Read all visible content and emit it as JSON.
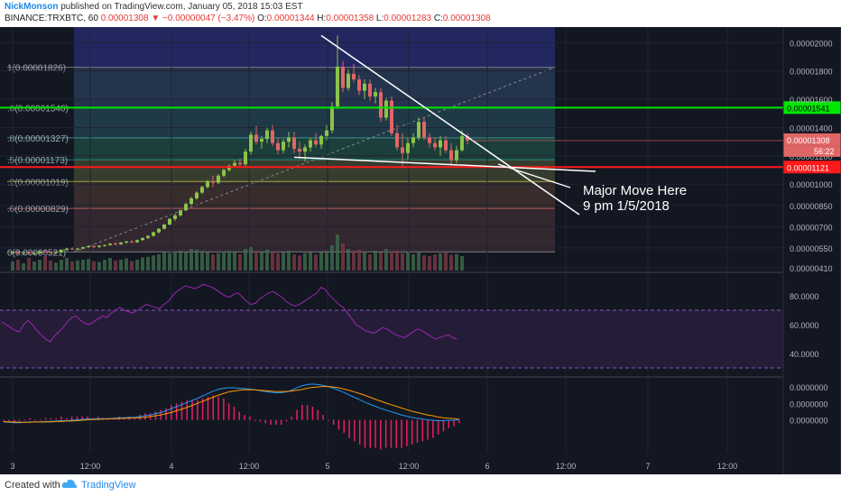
{
  "header": {
    "author": "NickMonson",
    "published": "published on TradingView.com, January 05, 2018 15:03 EST",
    "symbol": "BINANCE:TRXBTC, 60",
    "price": "0.00001308",
    "change": "−0.00000047 (−3.47%)",
    "ohlc": {
      "o_label": "O:",
      "o": "0.00001344",
      "h_label": "H:",
      "h": "0.00001358",
      "l_label": "L:",
      "l": "0.00001283",
      "c_label": "C:",
      "c": "0.00001308"
    }
  },
  "footer": {
    "created_with": "Created with",
    "brand": "TradingView"
  },
  "colors": {
    "bg": "#131722",
    "up": "#8bc34a",
    "down": "#e06666",
    "green_line": "#00e600",
    "red_line": "#ff1a1a",
    "rsi": "#9c27b0",
    "macd": "#2196f3",
    "signal": "#ff9800"
  },
  "chart_data": {
    "type": "candlestick",
    "price_axis_labels": [
      "0.00002000",
      "0.00001800",
      "0.00001600",
      "0.00001400",
      "0.00001200",
      "0.00001000",
      "0.00000850",
      "0.00000700",
      "0.00000550",
      "0.00000410"
    ],
    "price_range": [
      3.9e-06,
      2.11e-05
    ],
    "current_price": "0.00001308",
    "countdown": "56:22",
    "time_labels": [
      "3",
      "12:00",
      "4",
      "12:00",
      "5",
      "12:00",
      "6",
      "12:00",
      "7",
      "12:00"
    ],
    "fib_levels": [
      {
        "label": "1(0.00001826)",
        "value": 1.826e-05
      },
      {
        "label": ".6(0.00001540)",
        "value": 1.54e-05
      },
      {
        "label": ".8(0.00001327)",
        "value": 1.327e-05
      },
      {
        "label": ".5(0.00001173)",
        "value": 1.173e-05
      },
      {
        "label": ".2(0.00001019)",
        "value": 1.019e-05
      },
      {
        "label": ".6(0.00000829)",
        "value": 8.29e-06
      },
      {
        "label": "0(0.00000521)",
        "value": 5.21e-06
      }
    ],
    "horizontal_lines": [
      {
        "label": "0.00001541",
        "value": 1.541e-05,
        "color": "#00e600"
      },
      {
        "label": "0.00001121",
        "value": 1.121e-05,
        "color": "#ff1a1a"
      }
    ],
    "annotation": {
      "line1": "Major Move Here",
      "line2": "9 pm 1/5/2018"
    },
    "rsi_labels": [
      "80.0000",
      "60.0000",
      "40.0000"
    ],
    "rsi_range": [
      25,
      95
    ],
    "rsi_bands": [
      70,
      30
    ],
    "rsi": [
      62,
      60,
      58,
      56,
      55,
      60,
      63,
      60,
      56,
      53,
      50,
      48,
      52,
      55,
      58,
      62,
      65,
      66,
      63,
      61,
      60,
      62,
      64,
      66,
      65,
      68,
      70,
      72,
      70,
      69,
      68,
      70,
      72,
      74,
      73,
      72,
      71,
      74,
      76,
      80,
      83,
      85,
      87,
      86,
      85,
      86,
      88,
      87,
      86,
      84,
      82,
      80,
      79,
      81,
      82,
      79,
      76,
      74,
      75,
      78,
      80,
      82,
      83,
      81,
      79,
      76,
      74,
      73,
      74,
      76,
      78,
      80,
      82,
      86,
      84,
      80,
      77,
      74,
      72,
      68,
      64,
      60,
      58,
      56,
      55,
      54,
      56,
      58,
      57,
      55,
      53,
      52,
      51,
      53,
      55,
      57,
      56,
      54,
      52,
      50,
      51,
      52,
      53,
      51,
      50
    ],
    "macd_labels": [
      "0.0000000",
      "0.0000000",
      "0.0000000"
    ],
    "macd_range": [
      -8e-07,
      1e-06
    ],
    "macd_line": [
      -5e-08,
      -6e-08,
      -7e-08,
      -7e-08,
      -6e-08,
      -5e-08,
      -5e-08,
      -5e-08,
      -4e-08,
      -4e-08,
      -3e-08,
      -2e-08,
      -2e-08,
      -1e-08,
      0,
      1e-08,
      2e-08,
      2e-08,
      3e-08,
      3e-08,
      3e-08,
      4e-08,
      5e-08,
      5e-08,
      6e-08,
      6e-08,
      8e-08,
      1e-07,
      1.2e-07,
      1.5e-07,
      1.8e-07,
      2.2e-07,
      2.7e-07,
      3.2e-07,
      3.7e-07,
      4.2e-07,
      4.7e-07,
      5.2e-07,
      5.8e-07,
      6.4e-07,
      7e-07,
      7.4e-07,
      7.7e-07,
      7.8e-07,
      7.8e-07,
      7.7e-07,
      7.6e-07,
      7.5e-07,
      7.3e-07,
      7.1e-07,
      6.9e-07,
      6.7e-07,
      6.6e-07,
      6.6e-07,
      6.8e-07,
      7.2e-07,
      7.8e-07,
      8.3e-07,
      8.6e-07,
      8.7e-07,
      8.6e-07,
      8.4e-07,
      8.1e-07,
      7.7e-07,
      7.2e-07,
      6.7e-07,
      6.1e-07,
      5.5e-07,
      4.9e-07,
      4.3e-07,
      3.8e-07,
      3.3e-07,
      2.8e-07,
      2.4e-07,
      2e-07,
      1.6e-07,
      1.2e-07,
      9e-08,
      6e-08,
      4e-08,
      2e-08,
      0,
      -1e-08,
      -2e-08,
      -2e-08,
      -1e-08,
      -1e-08,
      0
    ],
    "signal_line": [
      -4e-08,
      -5e-08,
      -5e-08,
      -6e-08,
      -6e-08,
      -6e-08,
      -5e-08,
      -5e-08,
      -5e-08,
      -5e-08,
      -4e-08,
      -4e-08,
      -3e-08,
      -3e-08,
      -2e-08,
      -1e-08,
      0,
      1e-08,
      1e-08,
      2e-08,
      2e-08,
      3e-08,
      3e-08,
      4e-08,
      4e-08,
      5e-08,
      5e-08,
      6e-08,
      8e-08,
      1e-07,
      1.2e-07,
      1.5e-07,
      1.8e-07,
      2.2e-07,
      2.6e-07,
      3e-07,
      3.5e-07,
      4e-07,
      4.5e-07,
      5e-07,
      5.5e-07,
      6e-07,
      6.4e-07,
      6.8e-07,
      7e-07,
      7.2e-07,
      7.3e-07,
      7.3e-07,
      7.3e-07,
      7.2e-07,
      7.1e-07,
      7e-07,
      6.9e-07,
      6.9e-07,
      6.9e-07,
      7e-07,
      7.2e-07,
      7.4e-07,
      7.7e-07,
      7.9e-07,
      8e-07,
      8.1e-07,
      8.1e-07,
      8e-07,
      7.8e-07,
      7.5e-07,
      7.2e-07,
      6.8e-07,
      6.4e-07,
      6e-07,
      5.5e-07,
      5e-07,
      4.6e-07,
      4.1e-07,
      3.7e-07,
      3.3e-07,
      2.9e-07,
      2.5e-07,
      2.1e-07,
      1.8e-07,
      1.5e-07,
      1.2e-07,
      1e-07,
      7e-08,
      5e-08,
      4e-08,
      3e-08,
      2e-08
    ],
    "candles": [
      [
        5.15e-06,
        5.25e-06,
        5.05e-06,
        5.18e-06
      ],
      [
        5.18e-06,
        5.3e-06,
        5.08e-06,
        5.1e-06
      ],
      [
        5.1e-06,
        5.2e-06,
        5e-06,
        5.15e-06
      ],
      [
        5.15e-06,
        5.22e-06,
        5.05e-06,
        5.08e-06
      ],
      [
        5.08e-06,
        5.18e-06,
        5e-06,
        5.12e-06
      ],
      [
        5.12e-06,
        5.3e-06,
        5.08e-06,
        5.25e-06
      ],
      [
        5.25e-06,
        5.35e-06,
        5.15e-06,
        5.2e-06
      ],
      [
        5.2e-06,
        5.28e-06,
        5.1e-06,
        5.15e-06
      ],
      [
        5.15e-06,
        5.25e-06,
        5.08e-06,
        5.2e-06
      ],
      [
        5.2e-06,
        5.4e-06,
        5.15e-06,
        5.35e-06
      ],
      [
        5.35e-06,
        5.5e-06,
        5.28e-06,
        5.45e-06
      ],
      [
        5.45e-06,
        5.55e-06,
        5.35e-06,
        5.4e-06
      ],
      [
        5.4e-06,
        5.5e-06,
        5.32e-06,
        5.45e-06
      ],
      [
        5.45e-06,
        5.6e-06,
        5.4e-06,
        5.55e-06
      ],
      [
        5.55e-06,
        5.68e-06,
        5.48e-06,
        5.62e-06
      ],
      [
        5.62e-06,
        5.7e-06,
        5.5e-06,
        5.56e-06
      ],
      [
        5.56e-06,
        5.68e-06,
        5.5e-06,
        5.65e-06
      ],
      [
        5.65e-06,
        5.75e-06,
        5.58e-06,
        5.7e-06
      ],
      [
        5.7e-06,
        5.85e-06,
        5.65e-06,
        5.8e-06
      ],
      [
        5.8e-06,
        5.9e-06,
        5.7e-06,
        5.76e-06
      ],
      [
        5.76e-06,
        5.92e-06,
        5.7e-06,
        5.88e-06
      ],
      [
        5.88e-06,
        6e-06,
        5.8e-06,
        5.95e-06
      ],
      [
        5.95e-06,
        6.05e-06,
        5.85e-06,
        5.9e-06
      ],
      [
        5.9e-06,
        6.1e-06,
        5.85e-06,
        6.05e-06
      ],
      [
        6.05e-06,
        6.25e-06,
        6e-06,
        6.2e-06
      ],
      [
        6.2e-06,
        6.4e-06,
        6.12e-06,
        6.35e-06
      ],
      [
        6.35e-06,
        6.65e-06,
        6.3e-06,
        6.6e-06
      ],
      [
        6.6e-06,
        6.9e-06,
        6.52e-06,
        6.85e-06
      ],
      [
        6.85e-06,
        7.2e-06,
        6.8e-06,
        7.15e-06
      ],
      [
        7.15e-06,
        7.6e-06,
        7.1e-06,
        7.55e-06
      ],
      [
        7.55e-06,
        7.9e-06,
        7.4e-06,
        7.8e-06
      ],
      [
        7.8e-06,
        8.2e-06,
        7.7e-06,
        8.15e-06
      ],
      [
        8.15e-06,
        8.7e-06,
        8.1e-06,
        8.6e-06
      ],
      [
        8.6e-06,
        9.1e-06,
        8.5e-06,
        9e-06
      ],
      [
        9e-06,
        9.5e-06,
        8.9e-06,
        9.4e-06
      ],
      [
        9.4e-06,
        9.9e-06,
        9.3e-06,
        9.8e-06
      ],
      [
        9.8e-06,
        1.03e-05,
        9.7e-06,
        1.02e-05
      ],
      [
        1.02e-05,
        1.06e-05,
        9.8e-06,
        1.01e-05
      ],
      [
        1.01e-05,
        1.07e-05,
        1e-05,
        1.06e-05
      ],
      [
        1.06e-05,
        1.11e-05,
        1.05e-05,
        1.1e-05
      ],
      [
        1.1e-05,
        1.14e-05,
        1.09e-05,
        1.13e-05
      ],
      [
        1.13e-05,
        1.17e-05,
        1.12e-05,
        1.15e-05
      ],
      [
        1.15e-05,
        1.18e-05,
        1.12e-05,
        1.14e-05
      ],
      [
        1.14e-05,
        1.25e-05,
        1.13e-05,
        1.23e-05
      ],
      [
        1.23e-05,
        1.37e-05,
        1.21e-05,
        1.35e-05
      ],
      [
        1.35e-05,
        1.41e-05,
        1.28e-05,
        1.3e-05
      ],
      [
        1.3e-05,
        1.34e-05,
        1.25e-05,
        1.32e-05
      ],
      [
        1.32e-05,
        1.4e-05,
        1.29e-05,
        1.38e-05
      ],
      [
        1.38e-05,
        1.42e-05,
        1.27e-05,
        1.29e-05
      ],
      [
        1.29e-05,
        1.33e-05,
        1.21e-05,
        1.24e-05
      ],
      [
        1.24e-05,
        1.32e-05,
        1.22e-05,
        1.3e-05
      ],
      [
        1.3e-05,
        1.37e-05,
        1.26e-05,
        1.33e-05
      ],
      [
        1.33e-05,
        1.37e-05,
        1.22e-05,
        1.25e-05
      ],
      [
        1.25e-05,
        1.3e-05,
        1.18e-05,
        1.23e-05
      ],
      [
        1.23e-05,
        1.28e-05,
        1.16e-05,
        1.26e-05
      ],
      [
        1.26e-05,
        1.33e-05,
        1.23e-05,
        1.31e-05
      ],
      [
        1.31e-05,
        1.36e-05,
        1.26e-05,
        1.28e-05
      ],
      [
        1.28e-05,
        1.35e-05,
        1.25e-05,
        1.34e-05
      ],
      [
        1.34e-05,
        1.42e-05,
        1.31e-05,
        1.38e-05
      ],
      [
        1.38e-05,
        1.58e-05,
        1.36e-05,
        1.55e-05
      ],
      [
        1.55e-05,
        2.05e-05,
        1.53e-05,
        1.83e-05
      ],
      [
        1.83e-05,
        1.87e-05,
        1.65e-05,
        1.68e-05
      ],
      [
        1.68e-05,
        1.81e-05,
        1.66e-05,
        1.78e-05
      ],
      [
        1.78e-05,
        1.85e-05,
        1.72e-05,
        1.74e-05
      ],
      [
        1.74e-05,
        1.77e-05,
        1.63e-05,
        1.66e-05
      ],
      [
        1.66e-05,
        1.74e-05,
        1.6e-05,
        1.71e-05
      ],
      [
        1.71e-05,
        1.74e-05,
        1.59e-05,
        1.62e-05
      ],
      [
        1.62e-05,
        1.68e-05,
        1.57e-05,
        1.65e-05
      ],
      [
        1.65e-05,
        1.68e-05,
        1.44e-05,
        1.47e-05
      ],
      [
        1.47e-05,
        1.61e-05,
        1.45e-05,
        1.59e-05
      ],
      [
        1.59e-05,
        1.62e-05,
        1.34e-05,
        1.36e-05
      ],
      [
        1.36e-05,
        1.42e-05,
        1.24e-05,
        1.26e-05
      ],
      [
        1.26e-05,
        1.36e-05,
        1.13e-05,
        1.22e-05
      ],
      [
        1.22e-05,
        1.33e-05,
        1.17e-05,
        1.29e-05
      ],
      [
        1.29e-05,
        1.36e-05,
        1.26e-05,
        1.33e-05
      ],
      [
        1.33e-05,
        1.47e-05,
        1.31e-05,
        1.44e-05
      ],
      [
        1.44e-05,
        1.47e-05,
        1.31e-05,
        1.33e-05
      ],
      [
        1.33e-05,
        1.36e-05,
        1.26e-05,
        1.29e-05
      ],
      [
        1.29e-05,
        1.33e-05,
        1.24e-05,
        1.26e-05
      ],
      [
        1.26e-05,
        1.34e-05,
        1.2e-05,
        1.31e-05
      ],
      [
        1.31e-05,
        1.34e-05,
        1.22e-05,
        1.24e-05
      ],
      [
        1.24e-05,
        1.29e-05,
        1.14e-05,
        1.17e-05
      ],
      [
        1.17e-05,
        1.27e-05,
        1.15e-05,
        1.24e-05
      ],
      [
        1.24e-05,
        1.38e-05,
        1.23e-05,
        1.34e-05
      ],
      [
        1.34e-05,
        1.36e-05,
        1.28e-05,
        1.308e-05
      ]
    ],
    "volume_relative": [
      0.25,
      0.3,
      0.2,
      0.35,
      0.25,
      0.3,
      0.4,
      0.28,
      0.22,
      0.3,
      0.35,
      0.25,
      0.28,
      0.3,
      0.32,
      0.26,
      0.24,
      0.3,
      0.35,
      0.28,
      0.3,
      0.34,
      0.26,
      0.3,
      0.36,
      0.38,
      0.42,
      0.45,
      0.5,
      0.48,
      0.52,
      0.55,
      0.5,
      0.6,
      0.58,
      0.55,
      0.5,
      0.45,
      0.48,
      0.52,
      0.55,
      0.5,
      0.45,
      0.6,
      0.65,
      0.55,
      0.5,
      0.58,
      0.52,
      0.48,
      0.5,
      0.55,
      0.45,
      0.42,
      0.48,
      0.5,
      0.45,
      0.5,
      0.55,
      0.7,
      1.0,
      0.75,
      0.6,
      0.55,
      0.58,
      0.5,
      0.45,
      0.55,
      0.5,
      0.6,
      0.52,
      0.55,
      0.48,
      0.5,
      0.45,
      0.5,
      0.42,
      0.4,
      0.45,
      0.48,
      0.5,
      0.44,
      0.46,
      0.4
    ]
  }
}
